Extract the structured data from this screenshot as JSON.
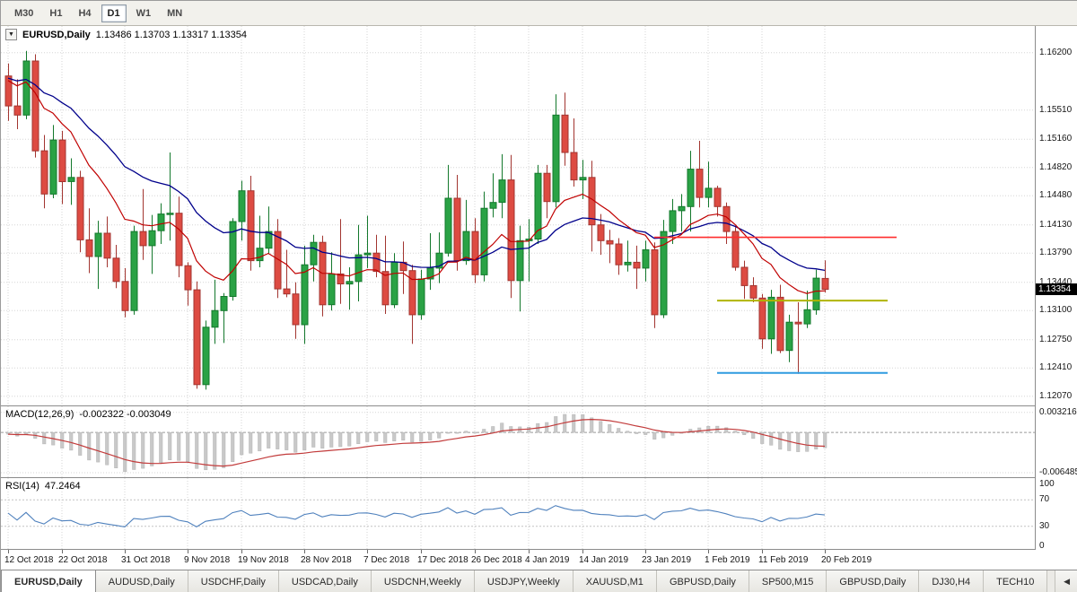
{
  "toolbar": {
    "timeframes": [
      {
        "label": "M30",
        "active": false
      },
      {
        "label": "H1",
        "active": false
      },
      {
        "label": "H4",
        "active": false
      },
      {
        "label": "D1",
        "active": true
      },
      {
        "label": "W1",
        "active": false
      },
      {
        "label": "MN",
        "active": false
      }
    ]
  },
  "main_chart": {
    "symbol": "EURUSD,Daily",
    "ohlc_text": "1.13486 1.13703 1.13317 1.13354",
    "open": "1.13486",
    "high": "1.13703",
    "low": "1.13317",
    "close": "1.13354",
    "current_price": 1.13354,
    "current_price_label": "1.13354",
    "price_range": {
      "top": 1.1652,
      "bottom": 1.1196
    },
    "price_axis": [
      {
        "label": "1.16200",
        "price": 1.162
      },
      {
        "label": "1.15510",
        "price": 1.1551
      },
      {
        "label": "1.15160",
        "price": 1.1516
      },
      {
        "label": "1.14820",
        "price": 1.1482
      },
      {
        "label": "1.14480",
        "price": 1.1448
      },
      {
        "label": "1.14130",
        "price": 1.1413
      },
      {
        "label": "1.13790",
        "price": 1.1379
      },
      {
        "label": "1.13440",
        "price": 1.1344
      },
      {
        "label": "1.13100",
        "price": 1.131
      },
      {
        "label": "1.12750",
        "price": 1.1275
      },
      {
        "label": "1.12410",
        "price": 1.1241
      },
      {
        "label": "1.12070",
        "price": 1.1207
      }
    ],
    "lines": [
      {
        "name": "resistance-line-red",
        "color": "#ff2d2d",
        "price": 1.1398,
        "from_index": 72,
        "to_index": 99,
        "width": 1.6
      },
      {
        "name": "support-line-yellow",
        "color": "#b0b400",
        "price": 1.1322,
        "from_index": 79,
        "to_index": 98,
        "width": 2
      },
      {
        "name": "support-line-blue",
        "color": "#2f9be0",
        "price": 1.1235,
        "from_index": 79,
        "to_index": 98,
        "width": 2
      }
    ]
  },
  "colors": {
    "up": "#2aa245",
    "up_border": "#13782c",
    "down": "#dd4b42",
    "down_border": "#a23530",
    "badge_bg": "#000000",
    "badge_text": "#ffffff"
  },
  "chart_data": {
    "type": "candlestick",
    "title": "EURUSD,Daily",
    "x_dates": [
      "2018.10.12",
      "2018.10.15",
      "2018.10.16",
      "2018.10.17",
      "2018.10.18",
      "2018.10.19",
      "2018.10.22",
      "2018.10.23",
      "2018.10.24",
      "2018.10.25",
      "2018.10.26",
      "2018.10.29",
      "2018.10.30",
      "2018.10.31",
      "2018.11.01",
      "2018.11.02",
      "2018.11.05",
      "2018.11.06",
      "2018.11.07",
      "2018.11.08",
      "2018.11.09",
      "2018.11.12",
      "2018.11.13",
      "2018.11.14",
      "2018.11.15",
      "2018.11.16",
      "2018.11.19",
      "2018.11.20",
      "2018.11.21",
      "2018.11.22",
      "2018.11.23",
      "2018.11.26",
      "2018.11.27",
      "2018.11.28",
      "2018.11.29",
      "2018.11.30",
      "2018.12.03",
      "2018.12.04",
      "2018.12.05",
      "2018.12.06",
      "2018.12.07",
      "2018.12.10",
      "2018.12.11",
      "2018.12.12",
      "2018.12.13",
      "2018.12.14",
      "2018.12.17",
      "2018.12.18",
      "2018.12.19",
      "2018.12.20",
      "2018.12.21",
      "2018.12.24",
      "2018.12.26",
      "2018.12.27",
      "2018.12.28",
      "2018.12.31",
      "2019.01.02",
      "2019.01.03",
      "2019.01.04",
      "2019.01.07",
      "2019.01.08",
      "2019.01.09",
      "2019.01.10",
      "2019.01.11",
      "2019.01.14",
      "2019.01.15",
      "2019.01.16",
      "2019.01.17",
      "2019.01.18",
      "2019.01.21",
      "2019.01.22",
      "2019.01.23",
      "2019.01.24",
      "2019.01.25",
      "2019.01.28",
      "2019.01.29",
      "2019.01.30",
      "2019.01.31",
      "2019.02.01",
      "2019.02.04",
      "2019.02.05",
      "2019.02.06",
      "2019.02.07",
      "2019.02.08",
      "2019.02.11",
      "2019.02.12",
      "2019.02.13",
      "2019.02.14",
      "2019.02.15",
      "2019.02.18",
      "2019.02.19",
      "2019.02.20"
    ],
    "ohlc": [
      [
        1.1592,
        1.1607,
        1.1538,
        1.1556
      ],
      [
        1.1556,
        1.1588,
        1.1528,
        1.1545
      ],
      [
        1.1545,
        1.1622,
        1.154,
        1.161
      ],
      [
        1.161,
        1.1618,
        1.1494,
        1.1502
      ],
      [
        1.1502,
        1.1521,
        1.1433,
        1.145
      ],
      [
        1.145,
        1.1533,
        1.1445,
        1.1515
      ],
      [
        1.1515,
        1.1526,
        1.1438,
        1.1465
      ],
      [
        1.1465,
        1.1493,
        1.1437,
        1.147
      ],
      [
        1.147,
        1.1478,
        1.138,
        1.1395
      ],
      [
        1.1395,
        1.1433,
        1.1355,
        1.1375
      ],
      [
        1.1375,
        1.1418,
        1.1336,
        1.1403
      ],
      [
        1.1403,
        1.1423,
        1.1362,
        1.1373
      ],
      [
        1.1373,
        1.1389,
        1.1337,
        1.1345
      ],
      [
        1.1345,
        1.1361,
        1.1302,
        1.131
      ],
      [
        1.131,
        1.1412,
        1.1305,
        1.1405
      ],
      [
        1.1405,
        1.1456,
        1.1371,
        1.1388
      ],
      [
        1.1388,
        1.1425,
        1.1354,
        1.1406
      ],
      [
        1.1406,
        1.1439,
        1.139,
        1.1426
      ],
      [
        1.1426,
        1.15,
        1.1394,
        1.1427
      ],
      [
        1.1427,
        1.1447,
        1.135,
        1.1364
      ],
      [
        1.1364,
        1.1368,
        1.1316,
        1.1335
      ],
      [
        1.1335,
        1.1345,
        1.1216,
        1.1221
      ],
      [
        1.1221,
        1.1298,
        1.1215,
        1.129
      ],
      [
        1.129,
        1.1347,
        1.127,
        1.131
      ],
      [
        1.131,
        1.1331,
        1.1271,
        1.1327
      ],
      [
        1.1327,
        1.1421,
        1.1322,
        1.1417
      ],
      [
        1.1417,
        1.1466,
        1.1394,
        1.1454
      ],
      [
        1.1454,
        1.1472,
        1.1358,
        1.137
      ],
      [
        1.137,
        1.1424,
        1.1362,
        1.1385
      ],
      [
        1.1385,
        1.1435,
        1.1378,
        1.1405
      ],
      [
        1.1405,
        1.142,
        1.1325,
        1.1336
      ],
      [
        1.1336,
        1.1383,
        1.1326,
        1.133
      ],
      [
        1.133,
        1.1344,
        1.1276,
        1.1293
      ],
      [
        1.1293,
        1.1388,
        1.127,
        1.1365
      ],
      [
        1.1365,
        1.1401,
        1.1345,
        1.1392
      ],
      [
        1.1392,
        1.14,
        1.1303,
        1.1317
      ],
      [
        1.1317,
        1.138,
        1.131,
        1.1354
      ],
      [
        1.1354,
        1.142,
        1.1318,
        1.1342
      ],
      [
        1.1342,
        1.1362,
        1.1311,
        1.1345
      ],
      [
        1.1345,
        1.1413,
        1.1321,
        1.1377
      ],
      [
        1.1377,
        1.1424,
        1.1361,
        1.1379
      ],
      [
        1.1379,
        1.1401,
        1.135,
        1.1357
      ],
      [
        1.1357,
        1.14,
        1.1306,
        1.1317
      ],
      [
        1.1317,
        1.1379,
        1.1313,
        1.1368
      ],
      [
        1.1368,
        1.1393,
        1.133,
        1.1358
      ],
      [
        1.1358,
        1.1365,
        1.127,
        1.1305
      ],
      [
        1.1305,
        1.1359,
        1.1299,
        1.1348
      ],
      [
        1.1348,
        1.1403,
        1.1335,
        1.1361
      ],
      [
        1.1361,
        1.1404,
        1.1343,
        1.1379
      ],
      [
        1.1379,
        1.1485,
        1.1375,
        1.1445
      ],
      [
        1.1445,
        1.1473,
        1.1358,
        1.137
      ],
      [
        1.137,
        1.1443,
        1.1365,
        1.1405
      ],
      [
        1.1405,
        1.1421,
        1.1343,
        1.1353
      ],
      [
        1.1353,
        1.1453,
        1.1345,
        1.1433
      ],
      [
        1.1433,
        1.1475,
        1.1422,
        1.144
      ],
      [
        1.144,
        1.1498,
        1.1421,
        1.1467
      ],
      [
        1.1467,
        1.1497,
        1.1325,
        1.1346
      ],
      [
        1.1346,
        1.1412,
        1.1309,
        1.1394
      ],
      [
        1.1394,
        1.142,
        1.1345,
        1.1396
      ],
      [
        1.1396,
        1.1485,
        1.139,
        1.1475
      ],
      [
        1.1475,
        1.1485,
        1.1421,
        1.1441
      ],
      [
        1.1441,
        1.157,
        1.1434,
        1.1545
      ],
      [
        1.1545,
        1.1572,
        1.1484,
        1.15
      ],
      [
        1.15,
        1.1541,
        1.1459,
        1.1467
      ],
      [
        1.1467,
        1.1491,
        1.1444,
        1.147
      ],
      [
        1.147,
        1.149,
        1.1381,
        1.1413
      ],
      [
        1.1413,
        1.1426,
        1.1377,
        1.1394
      ],
      [
        1.1394,
        1.1407,
        1.1367,
        1.139
      ],
      [
        1.139,
        1.1397,
        1.1353,
        1.1365
      ],
      [
        1.1365,
        1.1394,
        1.1357,
        1.1368
      ],
      [
        1.1368,
        1.1388,
        1.1336,
        1.1361
      ],
      [
        1.1361,
        1.1394,
        1.1345,
        1.1383
      ],
      [
        1.1383,
        1.1392,
        1.1289,
        1.1305
      ],
      [
        1.1305,
        1.1419,
        1.1301,
        1.1405
      ],
      [
        1.1405,
        1.1444,
        1.139,
        1.143
      ],
      [
        1.143,
        1.145,
        1.1405,
        1.1435
      ],
      [
        1.1435,
        1.1502,
        1.1405,
        1.148
      ],
      [
        1.148,
        1.1514,
        1.1434,
        1.1446
      ],
      [
        1.1446,
        1.1489,
        1.1434,
        1.1457
      ],
      [
        1.1457,
        1.146,
        1.1423,
        1.1435
      ],
      [
        1.1435,
        1.144,
        1.139,
        1.1405
      ],
      [
        1.1405,
        1.141,
        1.1358,
        1.1362
      ],
      [
        1.1362,
        1.137,
        1.1324,
        1.134
      ],
      [
        1.134,
        1.135,
        1.132,
        1.1325
      ],
      [
        1.1325,
        1.133,
        1.1264,
        1.1276
      ],
      [
        1.1276,
        1.1335,
        1.1258,
        1.1326
      ],
      [
        1.1326,
        1.1341,
        1.1259,
        1.1262
      ],
      [
        1.1262,
        1.1305,
        1.1248,
        1.1296
      ],
      [
        1.1296,
        1.132,
        1.1234,
        1.1294
      ],
      [
        1.1294,
        1.1334,
        1.1289,
        1.1311
      ],
      [
        1.1311,
        1.1359,
        1.1305,
        1.1349
      ],
      [
        1.13486,
        1.13703,
        1.13317,
        1.13354
      ]
    ],
    "indicators": {
      "ma_fast": {
        "type": "ema",
        "period": 12,
        "color": "#c00000"
      },
      "ma_slow": {
        "type": "ema",
        "period": 26,
        "color": "#00008b"
      },
      "macd": {
        "fast": 12,
        "slow": 26,
        "signal": 9,
        "hist_color": "#c9c9c9",
        "hist_border": "#b2b2b2",
        "signal_color": "#c23b3b",
        "value": "-0.002322",
        "signal_value": "-0.003049"
      },
      "rsi": {
        "period": 14,
        "color": "#4f81bd",
        "value": "47.2464",
        "levels": [
          70,
          30
        ]
      }
    }
  },
  "macd_panel": {
    "label": "MACD(12,26,9)",
    "values_text": "-0.002322 -0.003049",
    "axis_labels": [
      {
        "label": "0.003216",
        "value": 0.003216
      },
      {
        "label": "-0.006485",
        "value": -0.006485
      }
    ],
    "range": {
      "top": 0.0042,
      "bottom": -0.0072
    }
  },
  "rsi_panel": {
    "label": "RSI(14)",
    "value_text": "47.2464",
    "axis_labels": [
      {
        "label": "100",
        "value": 100
      },
      {
        "label": "70",
        "value": 70
      },
      {
        "label": "30",
        "value": 30
      },
      {
        "label": "0",
        "value": 0
      }
    ],
    "levels": [
      70,
      30
    ]
  },
  "date_axis": {
    "ticks": [
      {
        "index": 0,
        "label": "12 Oct 2018"
      },
      {
        "index": 6,
        "label": "22 Oct 2018"
      },
      {
        "index": 13,
        "label": "31 Oct 2018"
      },
      {
        "index": 20,
        "label": "9 Nov 2018"
      },
      {
        "index": 26,
        "label": "19 Nov 2018"
      },
      {
        "index": 33,
        "label": "28 Nov 2018"
      },
      {
        "index": 40,
        "label": "7 Dec 2018"
      },
      {
        "index": 46,
        "label": "17 Dec 2018"
      },
      {
        "index": 52,
        "label": "26 Dec 2018"
      },
      {
        "index": 58,
        "label": "4 Jan 2019"
      },
      {
        "index": 64,
        "label": "14 Jan 2019"
      },
      {
        "index": 71,
        "label": "23 Jan 2019"
      },
      {
        "index": 78,
        "label": "1 Feb 2019"
      },
      {
        "index": 84,
        "label": "11 Feb 2019"
      },
      {
        "index": 91,
        "label": "20 Feb 2019"
      }
    ]
  },
  "tabs": {
    "items": [
      {
        "label": "EURUSD,Daily",
        "active": true
      },
      {
        "label": "AUDUSD,Daily",
        "active": false
      },
      {
        "label": "USDCHF,Daily",
        "active": false
      },
      {
        "label": "USDCAD,Daily",
        "active": false
      },
      {
        "label": "USDCNH,Weekly",
        "active": false
      },
      {
        "label": "USDJPY,Weekly",
        "active": false
      },
      {
        "label": "XAUUSD,M1",
        "active": false
      },
      {
        "label": "GBPUSD,Daily",
        "active": false
      },
      {
        "label": "SP500,M15",
        "active": false
      },
      {
        "label": "GBPUSD,Daily",
        "active": false
      },
      {
        "label": "DJ30,H4",
        "active": false
      },
      {
        "label": "TECH10",
        "active": false
      }
    ],
    "scroll_left_icon": "◀"
  }
}
